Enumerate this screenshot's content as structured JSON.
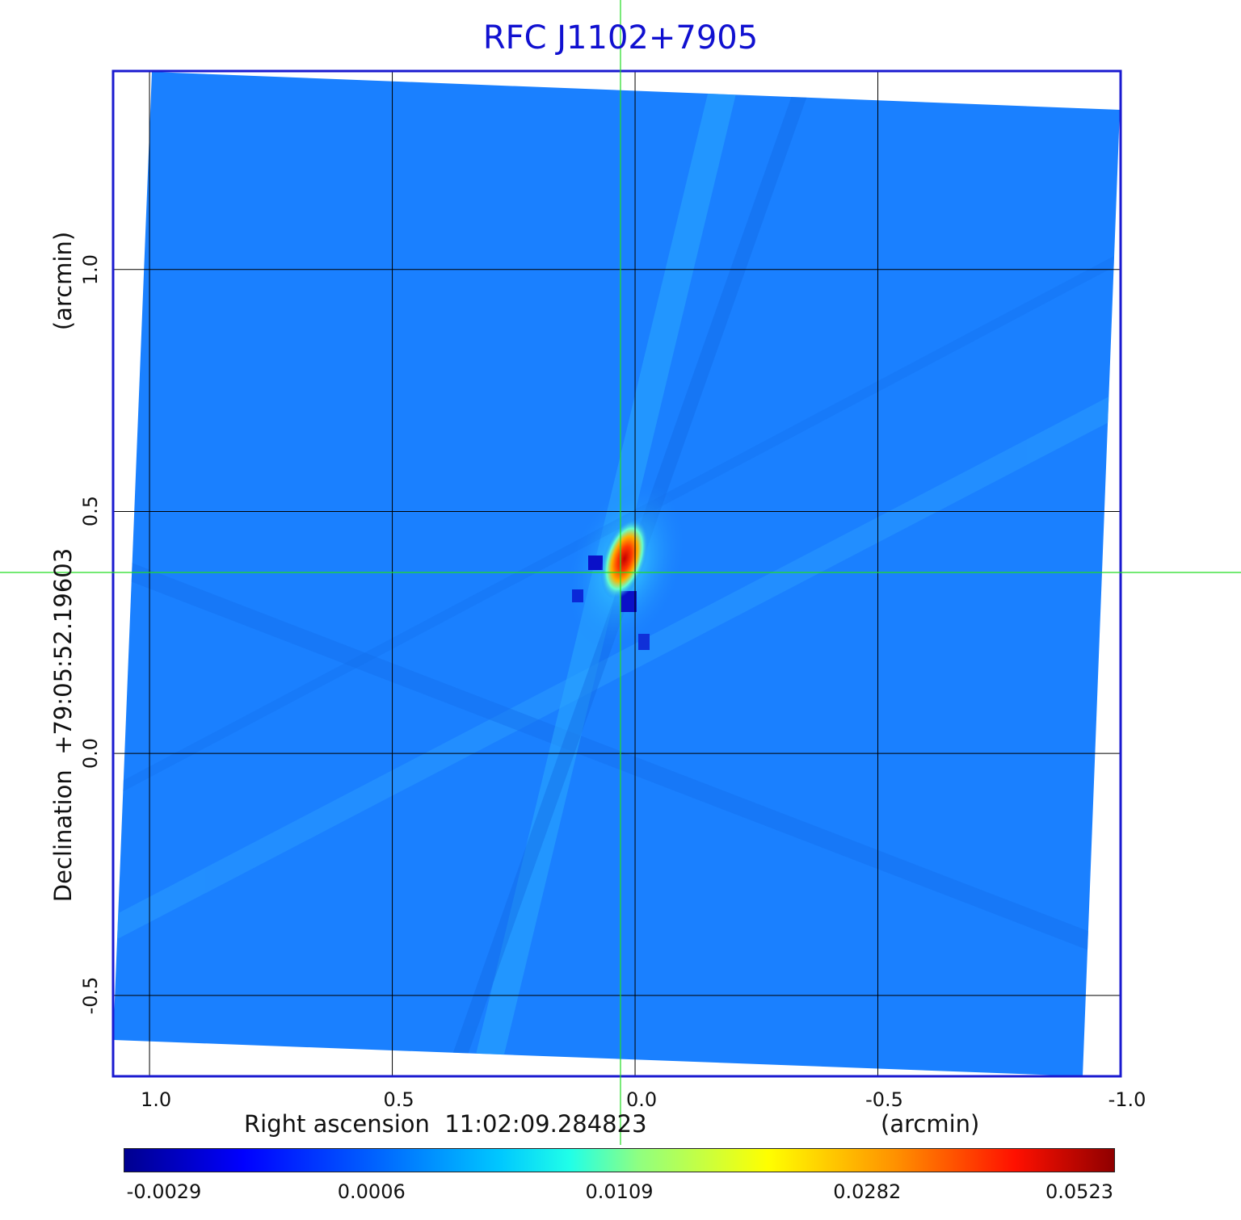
{
  "title": "RFC J1102+7905",
  "chart_data": {
    "type": "heatmap",
    "title": "RFC J1102+7905",
    "xlabel": "Right ascension  11:02:09.284823",
    "x_unit": "(arcmin)",
    "ylabel": "Declination  +79:05:52.19603",
    "y_unit": "(arcmin)",
    "x_ticks": [
      "1.0",
      "0.5",
      "0.0",
      "-0.5",
      "-1.0"
    ],
    "x_tick_values": [
      1.0,
      0.5,
      0.0,
      -0.5,
      -1.0
    ],
    "y_ticks": [
      "1.0",
      "0.5",
      "0.0",
      "-0.5"
    ],
    "y_tick_values": [
      1.0,
      0.5,
      0.0,
      -0.5
    ],
    "xlim": [
      1.075,
      -1.0
    ],
    "ylim": [
      -0.667,
      1.41
    ],
    "grid": true,
    "crosshair": {
      "x": 0.03,
      "y": 0.375
    },
    "colormap": "jet",
    "colorbar_ticks": [
      "-0.0029",
      "0.0006",
      "0.0109",
      "0.0282",
      "0.0523"
    ],
    "colorbar_values": [
      -0.0029,
      0.0006,
      0.0109,
      0.0282,
      0.0523
    ],
    "peak": {
      "x": 0.01,
      "y": 0.4,
      "value": 0.0523
    },
    "background_level": 0.0006
  },
  "colors": {
    "title": "#1010d0",
    "frame": "#1a1ad0",
    "crosshair": "#22dd22",
    "grid": "#000000",
    "background": "#1a80ff"
  }
}
